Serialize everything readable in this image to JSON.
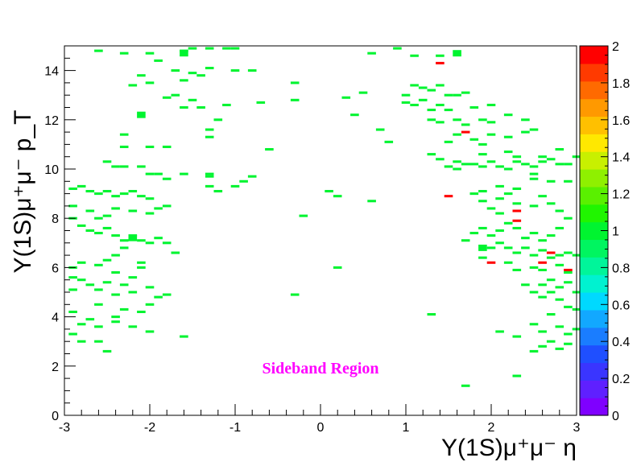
{
  "chart_data": {
    "type": "heatmap",
    "title": "",
    "xlabel": "Υ(1S)μ⁺μ⁻ η",
    "ylabel": "Υ(1S)μ⁺μ⁻ p_T",
    "xlim": [
      -3,
      3
    ],
    "ylim": [
      0,
      15
    ],
    "x_ticks": [
      -3,
      -2,
      -1,
      0,
      1,
      2,
      3
    ],
    "y_ticks": [
      0,
      2,
      4,
      6,
      8,
      10,
      12,
      14
    ],
    "x_tick_labels": [
      "-3",
      "-2",
      "-1",
      "0",
      "1",
      "2",
      "3"
    ],
    "y_tick_labels": [
      "0",
      "2",
      "4",
      "6",
      "8",
      "10",
      "12",
      "14"
    ],
    "bin_width_x": 0.1,
    "bin_width_y": 0.1,
    "annotation": {
      "text": "Sideband Region",
      "color": "#ff00ff"
    },
    "colorbar": {
      "min": 0,
      "max": 2,
      "tick_values": [
        0,
        0.2,
        0.4,
        0.6,
        0.8,
        1,
        1.2,
        1.4,
        1.6,
        1.8,
        2
      ],
      "tick_labels": [
        "0",
        "0.2",
        "0.4",
        "0.6",
        "0.8",
        "1",
        "1.2",
        "1.4",
        "1.6",
        "1.8",
        "2"
      ],
      "colors": [
        "#7f00ff",
        "#5f20ff",
        "#3a35ff",
        "#1f4fff",
        "#1a7dff",
        "#12a8ff",
        "#00d9ff",
        "#00f2d0",
        "#00f59a",
        "#00f560",
        "#00f430",
        "#20f500",
        "#5af000",
        "#8ff000",
        "#c8f000",
        "#ffe800",
        "#ffc000",
        "#ff9900",
        "#ff6a00",
        "#ff3a00",
        "#ff0000"
      ]
    },
    "entries_value_1": [
      [
        -2.6,
        14.8
      ],
      [
        -2.3,
        14.7
      ],
      [
        -2.0,
        14.7
      ],
      [
        -1.9,
        14.4
      ],
      [
        -1.6,
        14.8
      ],
      [
        -1.5,
        14.9
      ],
      [
        -1.3,
        14.9
      ],
      [
        -1.1,
        14.9
      ],
      [
        -1.0,
        14.9
      ],
      [
        -1.3,
        14.1
      ],
      [
        -1.7,
        14.0
      ],
      [
        -1.5,
        13.9
      ],
      [
        -1.4,
        13.8
      ],
      [
        -1.0,
        14.0
      ],
      [
        -0.8,
        14.0
      ],
      [
        -2.1,
        13.8
      ],
      [
        -2.0,
        13.5
      ],
      [
        -2.2,
        13.4
      ],
      [
        -1.6,
        13.6
      ],
      [
        -1.7,
        13.0
      ],
      [
        -1.8,
        12.9
      ],
      [
        -1.5,
        12.8
      ],
      [
        -1.6,
        12.5
      ],
      [
        -1.4,
        12.5
      ],
      [
        -1.1,
        12.6
      ],
      [
        -1.2,
        12.0
      ],
      [
        -1.3,
        11.6
      ],
      [
        -1.3,
        11.3
      ],
      [
        -2.3,
        11.4
      ],
      [
        -2.3,
        10.9
      ],
      [
        -2.0,
        10.9
      ],
      [
        -1.8,
        10.9
      ],
      [
        -2.5,
        10.3
      ],
      [
        -2.4,
        10.1
      ],
      [
        -2.3,
        10.1
      ],
      [
        -2.1,
        10.1
      ],
      [
        -2.0,
        9.8
      ],
      [
        -1.9,
        9.8
      ],
      [
        -1.8,
        9.6
      ],
      [
        -1.6,
        9.8
      ],
      [
        -1.3,
        9.7
      ],
      [
        -1.3,
        9.3
      ],
      [
        -1.2,
        9.1
      ],
      [
        -1.0,
        9.3
      ],
      [
        -0.9,
        9.5
      ],
      [
        -0.8,
        9.7
      ],
      [
        -0.6,
        10.8
      ],
      [
        -0.3,
        13.5
      ],
      [
        -0.3,
        12.8
      ],
      [
        -0.7,
        12.7
      ],
      [
        -1.3,
        9.8
      ],
      [
        -2.9,
        9.2
      ],
      [
        -2.8,
        9.3
      ],
      [
        -2.7,
        9.1
      ],
      [
        -2.6,
        9.0
      ],
      [
        -2.5,
        9.1
      ],
      [
        -2.4,
        8.9
      ],
      [
        -2.3,
        9.0
      ],
      [
        -2.2,
        9.1
      ],
      [
        -2.1,
        8.9
      ],
      [
        -2.0,
        8.8
      ],
      [
        -1.8,
        8.5
      ],
      [
        -1.9,
        8.4
      ],
      [
        -2.0,
        8.2
      ],
      [
        -2.2,
        8.3
      ],
      [
        -2.4,
        8.4
      ],
      [
        -2.5,
        8.1
      ],
      [
        -2.6,
        8.0
      ],
      [
        -2.7,
        8.3
      ],
      [
        -2.9,
        8.5
      ],
      [
        -2.9,
        8.0
      ],
      [
        -2.8,
        7.7
      ],
      [
        -2.7,
        7.5
      ],
      [
        -2.6,
        7.4
      ],
      [
        -2.5,
        7.6
      ],
      [
        -2.4,
        7.3
      ],
      [
        -2.3,
        7.1
      ],
      [
        -2.2,
        7.3
      ],
      [
        -2.1,
        7.1
      ],
      [
        -2.0,
        7.0
      ],
      [
        -1.9,
        7.2
      ],
      [
        -1.8,
        7.0
      ],
      [
        -1.7,
        6.6
      ],
      [
        -2.3,
        6.8
      ],
      [
        -2.4,
        6.5
      ],
      [
        -2.5,
        6.3
      ],
      [
        -2.6,
        6.1
      ],
      [
        -2.8,
        6.2
      ],
      [
        -2.9,
        6.0
      ],
      [
        -2.9,
        5.6
      ],
      [
        -2.8,
        5.5
      ],
      [
        -2.7,
        5.3
      ],
      [
        -2.6,
        5.1
      ],
      [
        -2.5,
        5.4
      ],
      [
        -2.4,
        5.8
      ],
      [
        -2.2,
        5.6
      ],
      [
        -2.1,
        6.2
      ],
      [
        -2.1,
        6.0
      ],
      [
        -2.3,
        5.3
      ],
      [
        -2.2,
        5.0
      ],
      [
        -2.0,
        5.2
      ],
      [
        -1.9,
        4.8
      ],
      [
        -1.8,
        4.9
      ],
      [
        -2.0,
        4.5
      ],
      [
        -2.1,
        4.2
      ],
      [
        -2.4,
        4.0
      ],
      [
        -2.3,
        4.3
      ],
      [
        -2.4,
        3.8
      ],
      [
        -2.2,
        3.6
      ],
      [
        -2.0,
        3.4
      ],
      [
        -2.6,
        3.6
      ],
      [
        -2.7,
        3.9
      ],
      [
        -2.8,
        3.7
      ],
      [
        -2.9,
        4.2
      ],
      [
        -2.9,
        5.1
      ],
      [
        -2.6,
        4.5
      ],
      [
        -2.4,
        4.9
      ],
      [
        -2.9,
        3.3
      ],
      [
        -2.8,
        3.0
      ],
      [
        -2.6,
        3.0
      ],
      [
        -2.5,
        2.6
      ],
      [
        -1.6,
        3.2
      ],
      [
        -0.3,
        4.9
      ],
      [
        -0.2,
        8.1
      ],
      [
        0.1,
        9.1
      ],
      [
        0.2,
        8.9
      ],
      [
        0.6,
        8.7
      ],
      [
        0.2,
        6.0
      ],
      [
        0.6,
        14.7
      ],
      [
        0.5,
        13.1
      ],
      [
        0.3,
        12.9
      ],
      [
        0.4,
        12.2
      ],
      [
        0.8,
        11.1
      ],
      [
        0.7,
        11.6
      ],
      [
        0.9,
        14.9
      ],
      [
        1.1,
        14.6
      ],
      [
        1.4,
        14.6
      ],
      [
        1.4,
        13.4
      ],
      [
        1.2,
        13.3
      ],
      [
        1.3,
        13.2
      ],
      [
        1.1,
        13.4
      ],
      [
        1.0,
        13.0
      ],
      [
        1.2,
        12.8
      ],
      [
        1.1,
        12.6
      ],
      [
        1.0,
        12.7
      ],
      [
        1.3,
        12.4
      ],
      [
        1.4,
        12.6
      ],
      [
        1.5,
        13.0
      ],
      [
        1.6,
        13.0
      ],
      [
        1.7,
        13.1
      ],
      [
        1.5,
        12.4
      ],
      [
        1.3,
        12.0
      ],
      [
        1.4,
        11.9
      ],
      [
        1.6,
        12.0
      ],
      [
        1.7,
        11.8
      ],
      [
        1.9,
        12.0
      ],
      [
        2.0,
        11.9
      ],
      [
        1.8,
        12.5
      ],
      [
        2.0,
        12.6
      ],
      [
        2.2,
        12.2
      ],
      [
        2.4,
        12.0
      ],
      [
        2.5,
        11.6
      ],
      [
        2.4,
        11.5
      ],
      [
        2.2,
        11.3
      ],
      [
        2.0,
        11.4
      ],
      [
        1.9,
        11.0
      ],
      [
        1.8,
        11.2
      ],
      [
        1.6,
        11.4
      ],
      [
        1.5,
        11.1
      ],
      [
        1.9,
        10.6
      ],
      [
        1.6,
        10.3
      ],
      [
        1.5,
        10.1
      ],
      [
        1.4,
        10.4
      ],
      [
        1.3,
        10.6
      ],
      [
        1.6,
        10.0
      ],
      [
        1.7,
        10.2
      ],
      [
        1.8,
        10.2
      ],
      [
        1.9,
        10.1
      ],
      [
        2.0,
        10.3
      ],
      [
        2.1,
        10.1
      ],
      [
        2.2,
        10.0
      ],
      [
        2.3,
        10.3
      ],
      [
        2.4,
        10.2
      ],
      [
        2.5,
        10.1
      ],
      [
        2.6,
        10.3
      ],
      [
        2.7,
        10.4
      ],
      [
        2.8,
        10.2
      ],
      [
        2.9,
        10.2
      ],
      [
        3.0,
        10.5
      ],
      [
        2.6,
        10.5
      ],
      [
        2.8,
        10.8
      ],
      [
        2.2,
        10.7
      ],
      [
        2.3,
        10.5
      ],
      [
        2.5,
        9.8
      ],
      [
        2.7,
        9.5
      ],
      [
        2.9,
        9.5
      ],
      [
        2.3,
        9.2
      ],
      [
        2.2,
        9.0
      ],
      [
        2.1,
        8.8
      ],
      [
        1.9,
        9.1
      ],
      [
        1.8,
        9.0
      ],
      [
        1.9,
        8.7
      ],
      [
        2.0,
        8.4
      ],
      [
        2.1,
        8.2
      ],
      [
        2.3,
        8.6
      ],
      [
        2.5,
        8.5
      ],
      [
        2.6,
        8.9
      ],
      [
        2.7,
        8.6
      ],
      [
        2.8,
        8.3
      ],
      [
        2.9,
        8.0
      ],
      [
        2.8,
        7.6
      ],
      [
        2.7,
        7.3
      ],
      [
        2.6,
        7.1
      ],
      [
        2.5,
        7.4
      ],
      [
        2.4,
        7.2
      ],
      [
        2.3,
        7.6
      ],
      [
        2.2,
        7.8
      ],
      [
        2.1,
        7.5
      ],
      [
        2.0,
        7.3
      ],
      [
        1.9,
        7.6
      ],
      [
        1.8,
        7.4
      ],
      [
        1.7,
        7.1
      ],
      [
        2.1,
        7.0
      ],
      [
        2.2,
        6.8
      ],
      [
        2.3,
        6.6
      ],
      [
        2.4,
        6.8
      ],
      [
        2.5,
        6.5
      ],
      [
        2.6,
        6.7
      ],
      [
        2.7,
        6.4
      ],
      [
        2.8,
        6.5
      ],
      [
        2.9,
        6.6
      ],
      [
        3.0,
        6.5
      ],
      [
        2.0,
        6.8
      ],
      [
        1.9,
        6.4
      ],
      [
        2.2,
        6.2
      ],
      [
        2.3,
        5.9
      ],
      [
        2.5,
        6.0
      ],
      [
        2.6,
        5.9
      ],
      [
        2.8,
        6.1
      ],
      [
        2.9,
        5.8
      ],
      [
        2.7,
        5.5
      ],
      [
        2.6,
        5.3
      ],
      [
        2.8,
        5.2
      ],
      [
        2.9,
        5.4
      ],
      [
        3.0,
        5.0
      ],
      [
        2.7,
        5.0
      ],
      [
        2.5,
        5.0
      ],
      [
        2.4,
        5.3
      ],
      [
        2.6,
        4.8
      ],
      [
        2.8,
        4.7
      ],
      [
        2.9,
        4.4
      ],
      [
        3.0,
        4.3
      ],
      [
        2.7,
        4.1
      ],
      [
        2.5,
        3.7
      ],
      [
        2.6,
        3.4
      ],
      [
        2.8,
        3.6
      ],
      [
        2.9,
        3.3
      ],
      [
        3.0,
        3.5
      ],
      [
        2.7,
        3.0
      ],
      [
        2.6,
        2.8
      ],
      [
        2.5,
        2.6
      ],
      [
        2.8,
        2.7
      ],
      [
        2.9,
        2.9
      ],
      [
        2.3,
        3.2
      ],
      [
        2.1,
        3.4
      ],
      [
        2.3,
        1.6
      ],
      [
        1.7,
        1.2
      ],
      [
        1.3,
        4.1
      ],
      [
        2.1,
        9.3
      ],
      [
        2.5,
        9.6
      ]
    ],
    "entries_value_1_large": [
      [
        -1.6,
        14.7
      ],
      [
        -2.1,
        12.2
      ],
      [
        -2.2,
        7.2
      ],
      [
        1.6,
        14.7
      ],
      [
        1.9,
        6.8
      ]
    ],
    "entries_value_2": [
      [
        1.4,
        14.3
      ],
      [
        1.7,
        11.5
      ],
      [
        1.5,
        8.9
      ],
      [
        2.3,
        8.3
      ],
      [
        2.3,
        7.9
      ],
      [
        2.7,
        6.6
      ],
      [
        2.0,
        6.2
      ],
      [
        2.6,
        6.2
      ],
      [
        2.9,
        5.9
      ]
    ]
  }
}
